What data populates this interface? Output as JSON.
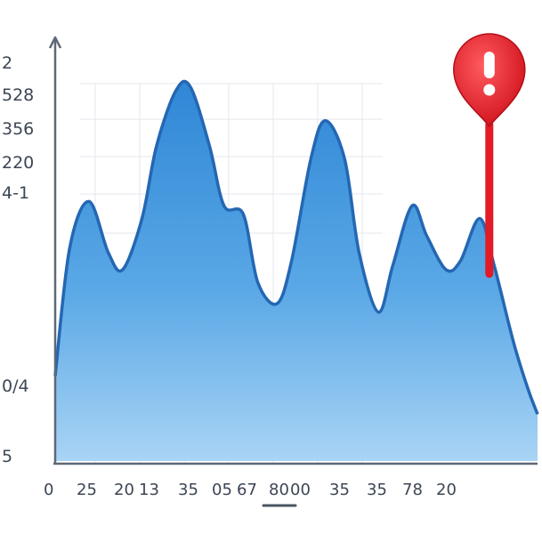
{
  "chart_data": {
    "type": "area",
    "title": "",
    "xlabel": "",
    "ylabel": "",
    "y_tick_labels": [
      "2",
      "528",
      "356",
      "220",
      "4-1",
      "0/4",
      "5"
    ],
    "x_tick_labels": [
      "0",
      "25",
      "20",
      "13",
      "35",
      "05",
      "67",
      "80",
      "00",
      "35",
      "35",
      "78",
      "20"
    ],
    "xlim": [
      0,
      100
    ],
    "ylim": [
      0,
      100
    ],
    "grid": true,
    "series": [
      {
        "color": "#3a8fd8",
        "x": [
          0,
          3,
          7,
          11,
          14,
          18,
          21,
          25,
          28,
          32,
          35,
          39,
          42,
          46,
          49,
          53,
          56,
          60,
          63,
          67,
          70,
          74,
          77,
          81,
          84,
          88,
          91,
          95,
          98,
          100
        ],
        "y": [
          20,
          50,
          61,
          49,
          45,
          57,
          74,
          87,
          88,
          74,
          60,
          58,
          42,
          37,
          47,
          71,
          80,
          71,
          49,
          35,
          46,
          60,
          53,
          45,
          47,
          57,
          46,
          28,
          17,
          11
        ]
      }
    ],
    "annotation": {
      "type": "alert-marker",
      "icon": "exclamation-pin-icon",
      "x": 90,
      "y_from": 44,
      "y_to": 100,
      "color": "#e21b26"
    }
  }
}
